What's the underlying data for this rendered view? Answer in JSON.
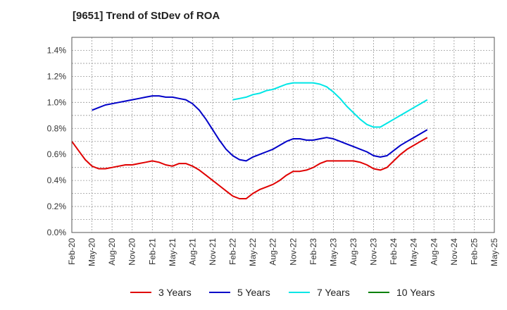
{
  "title": "[9651]  Trend of StDev of ROA",
  "chart_data": {
    "type": "line",
    "title": "[9651]  Trend of StDev of ROA",
    "xlabel": "",
    "ylabel": "",
    "ylim": [
      0,
      1.5
    ],
    "yticks": [
      "0.0%",
      "0.2%",
      "0.4%",
      "0.6%",
      "0.8%",
      "1.0%",
      "1.2%",
      "1.4%"
    ],
    "ytick_values": [
      0,
      0.2,
      0.4,
      0.6,
      0.8,
      1.0,
      1.2,
      1.4
    ],
    "xticks": [
      "Feb-20",
      "May-20",
      "Aug-20",
      "Nov-20",
      "Feb-21",
      "May-21",
      "Aug-21",
      "Nov-21",
      "Feb-22",
      "May-22",
      "Aug-22",
      "Nov-22",
      "Feb-23",
      "May-23",
      "Aug-23",
      "Nov-23",
      "Feb-24",
      "May-24",
      "Aug-24",
      "Nov-24",
      "Feb-25",
      "May-25"
    ],
    "grid": true,
    "legend_position": "bottom",
    "series": [
      {
        "name": "3 Years",
        "color": "#e00000",
        "values": [
          0.7,
          0.63,
          0.56,
          0.51,
          0.49,
          0.49,
          0.5,
          0.51,
          0.52,
          0.52,
          0.53,
          0.54,
          0.55,
          0.54,
          0.52,
          0.51,
          0.53,
          0.53,
          0.51,
          0.48,
          0.44,
          0.4,
          0.36,
          0.32,
          0.28,
          0.26,
          0.26,
          0.3,
          0.33,
          0.35,
          0.37,
          0.4,
          0.44,
          0.47,
          0.47,
          0.48,
          0.5,
          0.53,
          0.55,
          0.55,
          0.55,
          0.55,
          0.55,
          0.54,
          0.52,
          0.49,
          0.48,
          0.5,
          0.55,
          0.6,
          0.64,
          0.67,
          0.7,
          0.73
        ]
      },
      {
        "name": "5 Years",
        "color": "#0000c8",
        "values": [
          null,
          null,
          null,
          0.94,
          0.96,
          0.98,
          0.99,
          1.0,
          1.01,
          1.02,
          1.03,
          1.04,
          1.05,
          1.05,
          1.04,
          1.04,
          1.03,
          1.02,
          0.99,
          0.94,
          0.87,
          0.79,
          0.71,
          0.64,
          0.59,
          0.56,
          0.55,
          0.58,
          0.6,
          0.62,
          0.64,
          0.67,
          0.7,
          0.72,
          0.72,
          0.71,
          0.71,
          0.72,
          0.73,
          0.72,
          0.7,
          0.68,
          0.66,
          0.64,
          0.62,
          0.59,
          0.58,
          0.59,
          0.63,
          0.67,
          0.7,
          0.73,
          0.76,
          0.79
        ]
      },
      {
        "name": "7 Years",
        "color": "#00e6e6",
        "values": [
          null,
          null,
          null,
          null,
          null,
          null,
          null,
          null,
          null,
          null,
          null,
          null,
          null,
          null,
          null,
          null,
          null,
          null,
          null,
          null,
          null,
          null,
          null,
          null,
          1.02,
          1.03,
          1.04,
          1.06,
          1.07,
          1.09,
          1.1,
          1.12,
          1.14,
          1.15,
          1.15,
          1.15,
          1.15,
          1.14,
          1.12,
          1.08,
          1.03,
          0.97,
          0.92,
          0.87,
          0.83,
          0.81,
          0.81,
          0.84,
          0.87,
          0.9,
          0.93,
          0.96,
          0.99,
          1.02
        ]
      },
      {
        "name": "10 Years",
        "color": "#008000",
        "values": []
      }
    ]
  }
}
